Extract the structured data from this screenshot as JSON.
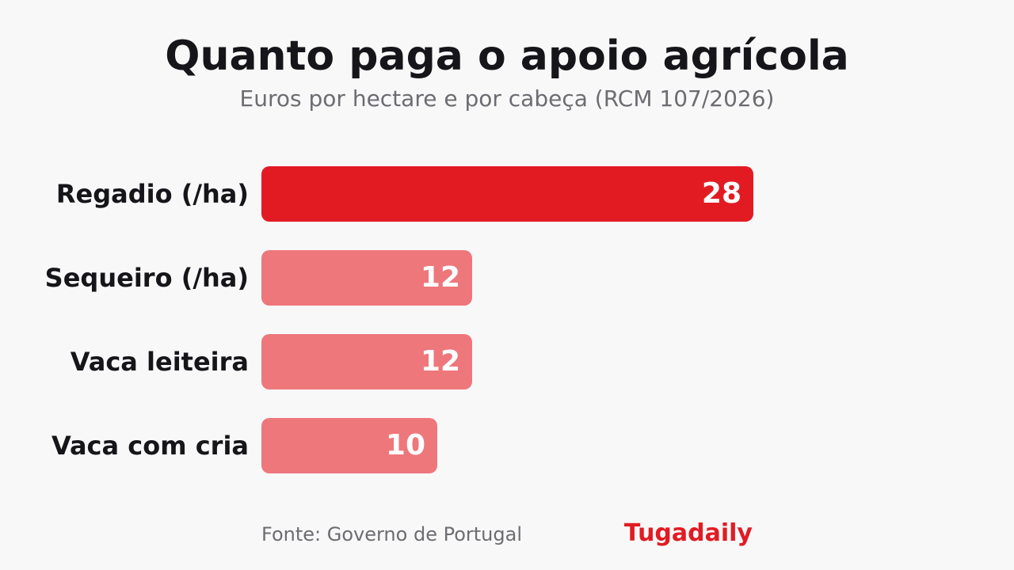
{
  "title": "Quanto paga o apoio agrícola",
  "subtitle": "Euros por hectare e por cabeça (RCM 107/2026)",
  "footer": {
    "source": "Fonte: Governo de Portugal",
    "brand": "Tugadaily"
  },
  "colors": {
    "highlight": "#e21b23",
    "muted": "#ee777c",
    "brand": "#e21b23"
  },
  "chart_data": {
    "type": "bar",
    "orientation": "horizontal",
    "categories": [
      "Regadio (/ha)",
      "Sequeiro (/ha)",
      "Vaca leiteira",
      "Vaca com cria"
    ],
    "values": [
      28,
      12,
      12,
      10
    ],
    "highlighted_category": "Regadio (/ha)",
    "xlim": [
      0,
      28
    ],
    "grid": false,
    "legend": "none"
  }
}
